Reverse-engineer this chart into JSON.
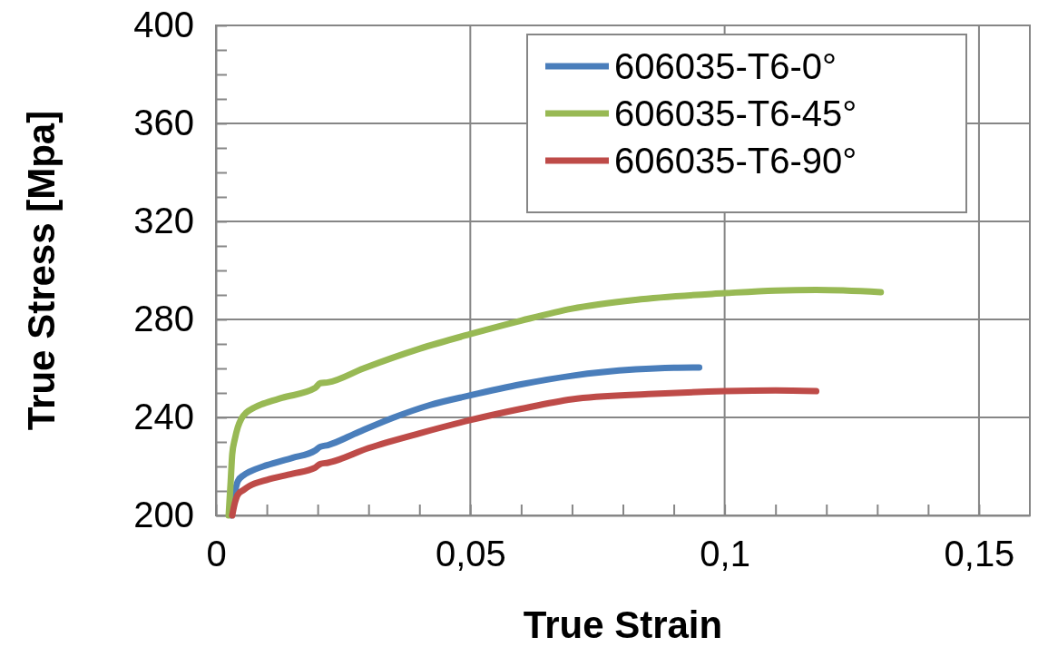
{
  "chart_data": {
    "type": "line",
    "xlabel": "True Strain",
    "ylabel": "True Stress [Mpa]",
    "xlim": [
      0,
      0.16
    ],
    "ylim": [
      200,
      400
    ],
    "xticks": [
      {
        "value": 0,
        "label": "0"
      },
      {
        "value": 0.01,
        "label": null
      },
      {
        "value": 0.02,
        "label": null
      },
      {
        "value": 0.03,
        "label": null
      },
      {
        "value": 0.04,
        "label": null
      },
      {
        "value": 0.05,
        "label": "0,05"
      },
      {
        "value": 0.06,
        "label": null
      },
      {
        "value": 0.07,
        "label": null
      },
      {
        "value": 0.08,
        "label": null
      },
      {
        "value": 0.09,
        "label": null
      },
      {
        "value": 0.1,
        "label": "0,1"
      },
      {
        "value": 0.11,
        "label": null
      },
      {
        "value": 0.12,
        "label": null
      },
      {
        "value": 0.13,
        "label": null
      },
      {
        "value": 0.14,
        "label": null
      },
      {
        "value": 0.15,
        "label": "0,15"
      }
    ],
    "yticks": [
      200,
      {
        "value": 210,
        "label": null
      },
      {
        "value": 220,
        "label": null
      },
      {
        "value": 230,
        "label": null
      },
      240,
      {
        "value": 250,
        "label": null
      },
      {
        "value": 260,
        "label": null
      },
      {
        "value": 270,
        "label": null
      },
      280,
      {
        "value": 290,
        "label": null
      },
      {
        "value": 300,
        "label": null
      },
      {
        "value": 310,
        "label": null
      },
      320,
      {
        "value": 330,
        "label": null
      },
      {
        "value": 340,
        "label": null
      },
      {
        "value": 350,
        "label": null
      },
      360,
      {
        "value": 370,
        "label": null
      },
      {
        "value": 380,
        "label": null
      },
      {
        "value": 390,
        "label": null
      },
      400
    ],
    "grid": true,
    "legend": "top right",
    "marker": "none",
    "line_style": "solid",
    "series": [
      {
        "name": "606035-T6-0°",
        "color": "#4a7ebb",
        "x": [
          0.003,
          0.0036,
          0.0043,
          0.0055,
          0.0066,
          0.01,
          0.015,
          0.0195,
          0.0205,
          0.022,
          0.028,
          0.035,
          0.042,
          0.05,
          0.06,
          0.07,
          0.0825,
          0.09,
          0.095
        ],
        "values": [
          200,
          208,
          214,
          216.5,
          217.8,
          220.5,
          223.5,
          226.5,
          228,
          228.7,
          234,
          240,
          245,
          249,
          253.5,
          257,
          259.6,
          260.3,
          260.4
        ]
      },
      {
        "name": "606035-T6-45°",
        "color": "#98b954",
        "x": [
          0.0025,
          0.0029,
          0.0032,
          0.0037,
          0.0043,
          0.005,
          0.006,
          0.0075,
          0.0093,
          0.013,
          0.0195,
          0.0205,
          0.022,
          0.029,
          0.04,
          0.05,
          0.06,
          0.07,
          0.0825,
          0.1,
          0.11,
          0.118,
          0.1307
        ],
        "values": [
          200,
          214,
          225,
          231,
          236,
          239.5,
          242,
          244,
          245.6,
          248,
          252,
          254,
          254.3,
          260,
          268,
          274,
          279.5,
          284.4,
          288,
          290.7,
          291.8,
          292,
          291.1
        ]
      },
      {
        "name": "606035-T6-90°",
        "color": "#be4b48",
        "x": [
          0.0032,
          0.0037,
          0.0043,
          0.0055,
          0.0066,
          0.01,
          0.015,
          0.0195,
          0.0205,
          0.022,
          0.03,
          0.04,
          0.05,
          0.06,
          0.07,
          0.085,
          0.1,
          0.11,
          0.118
        ],
        "values": [
          200,
          205,
          208.5,
          210.5,
          212,
          214.5,
          217,
          219.5,
          221,
          221.5,
          227.5,
          233.5,
          238.9,
          243.5,
          247.4,
          249.5,
          250.7,
          251,
          250.7
        ]
      }
    ]
  }
}
